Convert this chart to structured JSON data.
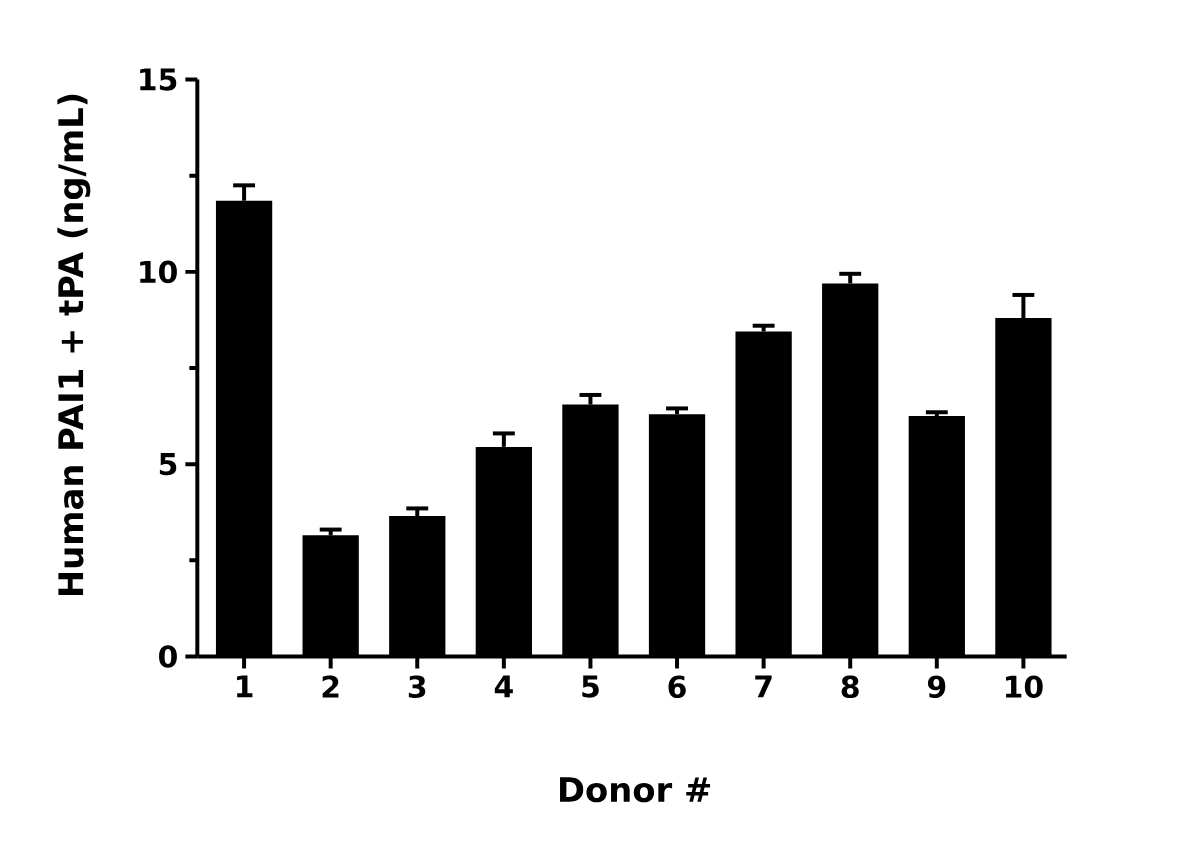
{
  "chart_data": {
    "type": "bar",
    "xlabel": "Donor #",
    "ylabel": "Human PAI1 + tPA (ng/mL)",
    "categories": [
      "1",
      "2",
      "3",
      "4",
      "5",
      "6",
      "7",
      "8",
      "9",
      "10"
    ],
    "values": [
      11.85,
      3.15,
      3.65,
      5.45,
      6.55,
      6.3,
      8.45,
      9.7,
      6.25,
      8.8
    ],
    "errors": [
      [
        11.85,
        12.25
      ],
      [
        3.15,
        3.3
      ],
      [
        3.65,
        3.85
      ],
      [
        5.45,
        5.8
      ],
      [
        6.55,
        6.8
      ],
      [
        6.3,
        6.45
      ],
      [
        8.45,
        8.6
      ],
      [
        9.7,
        9.95
      ],
      [
        6.25,
        6.35
      ],
      [
        8.8,
        9.4
      ]
    ],
    "color": "#000000",
    "ylim": [
      0,
      15
    ],
    "yticks": [
      0,
      {
        "value": 2.5,
        "label": null
      },
      5,
      {
        "value": 7.5,
        "label": null
      },
      10,
      {
        "value": 12.5,
        "label": null
      },
      15
    ]
  }
}
